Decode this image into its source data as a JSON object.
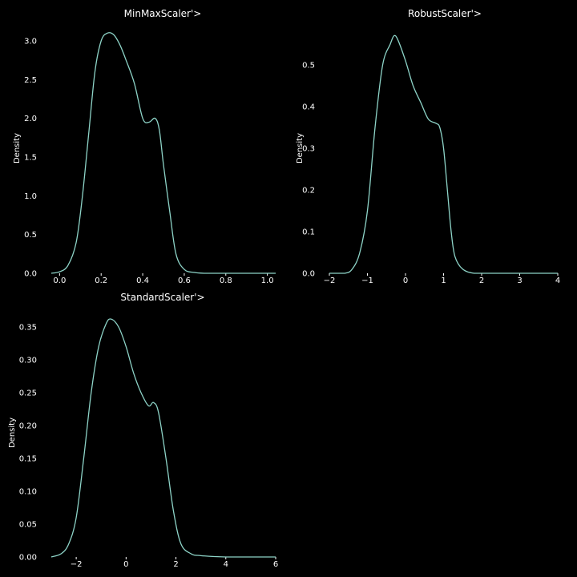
{
  "colors": {
    "background": "#000000",
    "line": "#8dd3c7",
    "text": "#ffffff"
  },
  "chart_data": [
    {
      "type": "line",
      "title": "MinMaxScaler'>",
      "xlabel": "",
      "ylabel": "Density",
      "xlim": [
        -0.04,
        1.04
      ],
      "ylim": [
        0,
        3.0
      ],
      "xticks": [
        0.0,
        0.2,
        0.4,
        0.6,
        0.8,
        1.0
      ],
      "xtick_labels": [
        "0.0",
        "0.2",
        "0.4",
        "0.6",
        "0.8",
        "1.0"
      ],
      "yticks": [
        0.0,
        0.5,
        1.0,
        1.5,
        2.0,
        2.5,
        3.0
      ],
      "ytick_labels": [
        "0.0",
        "0.5",
        "1.0",
        "1.5",
        "2.0",
        "2.5",
        "3.0"
      ],
      "grid": false,
      "x": [
        -0.04,
        0.0,
        0.04,
        0.08,
        0.11,
        0.14,
        0.17,
        0.2,
        0.23,
        0.26,
        0.29,
        0.32,
        0.36,
        0.4,
        0.43,
        0.46,
        0.48,
        0.5,
        0.53,
        0.56,
        0.6,
        0.65,
        0.7,
        0.8,
        1.04
      ],
      "y": [
        0.0,
        0.02,
        0.1,
        0.4,
        1.0,
        1.8,
        2.6,
        3.0,
        3.1,
        3.08,
        2.95,
        2.75,
        2.45,
        2.0,
        1.95,
        2.0,
        1.85,
        1.4,
        0.8,
        0.25,
        0.05,
        0.01,
        0.0,
        0.0,
        0.0
      ]
    },
    {
      "type": "line",
      "title": "RobustScaler'>",
      "xlabel": "",
      "ylabel": "Density",
      "xlim": [
        -2.0,
        4.0
      ],
      "ylim": [
        0,
        0.55
      ],
      "xticks": [
        -2,
        -1,
        0,
        1,
        2,
        3,
        4
      ],
      "xtick_labels": [
        "−2",
        "−1",
        "0",
        "1",
        "2",
        "3",
        "4"
      ],
      "yticks": [
        0.0,
        0.1,
        0.2,
        0.3,
        0.4,
        0.5
      ],
      "ytick_labels": [
        "0.0",
        "0.1",
        "0.2",
        "0.3",
        "0.4",
        "0.5"
      ],
      "grid": false,
      "x": [
        -2.0,
        -1.6,
        -1.4,
        -1.2,
        -1.0,
        -0.8,
        -0.6,
        -0.4,
        -0.3,
        -0.2,
        0.0,
        0.2,
        0.4,
        0.6,
        0.8,
        0.9,
        1.0,
        1.1,
        1.2,
        1.3,
        1.5,
        1.8,
        2.2,
        3.0,
        4.0
      ],
      "y": [
        0.0,
        0.0,
        0.01,
        0.05,
        0.15,
        0.35,
        0.5,
        0.55,
        0.57,
        0.56,
        0.51,
        0.45,
        0.41,
        0.37,
        0.36,
        0.35,
        0.3,
        0.2,
        0.1,
        0.04,
        0.01,
        0.0,
        0.0,
        0.0,
        0.0
      ]
    },
    {
      "type": "line",
      "title": "StandardScaler'>",
      "xlabel": "",
      "ylabel": "Density",
      "xlim": [
        -3.0,
        6.0
      ],
      "ylim": [
        0,
        0.35
      ],
      "xticks": [
        -2,
        0,
        2,
        4,
        6
      ],
      "xtick_labels": [
        "−2",
        "0",
        "2",
        "4",
        "6"
      ],
      "yticks": [
        0.0,
        0.05,
        0.1,
        0.15,
        0.2,
        0.25,
        0.3,
        0.35
      ],
      "ytick_labels": [
        "0.00",
        "0.05",
        "0.10",
        "0.15",
        "0.20",
        "0.25",
        "0.30",
        "0.35"
      ],
      "grid": false,
      "x": [
        -3.0,
        -2.6,
        -2.3,
        -2.0,
        -1.7,
        -1.4,
        -1.1,
        -0.8,
        -0.6,
        -0.3,
        0.0,
        0.3,
        0.6,
        0.9,
        1.1,
        1.3,
        1.6,
        1.9,
        2.2,
        2.6,
        3.0,
        4.0,
        6.0
      ],
      "y": [
        0.0,
        0.005,
        0.02,
        0.06,
        0.15,
        0.25,
        0.32,
        0.355,
        0.362,
        0.35,
        0.32,
        0.28,
        0.25,
        0.23,
        0.235,
        0.22,
        0.15,
        0.07,
        0.02,
        0.005,
        0.002,
        0.0,
        0.0
      ]
    }
  ]
}
